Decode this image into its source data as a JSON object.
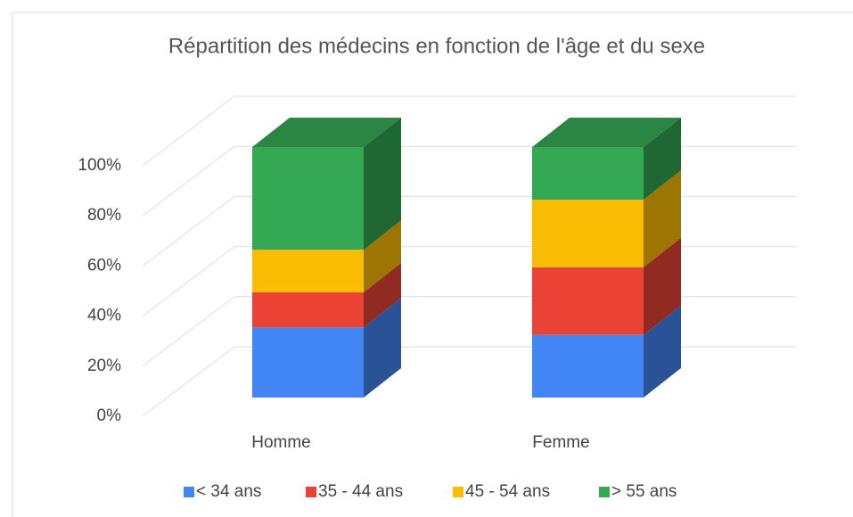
{
  "chart_data": {
    "type": "bar3d_stacked",
    "title": "Répartition des médecins en fonction de l'âge et du sexe",
    "categories": [
      "Homme",
      "Femme"
    ],
    "series": [
      {
        "name": "< 34 ans",
        "color": "#4285f4",
        "values": [
          28,
          25
        ]
      },
      {
        "name": "35 - 44 ans",
        "color": "#ea4335",
        "values": [
          14,
          27
        ]
      },
      {
        "name": "45 - 54 ans",
        "color": "#fbbc04",
        "values": [
          17,
          27
        ]
      },
      {
        "name": "> 55 ans",
        "color": "#34a853",
        "values": [
          41,
          21
        ]
      }
    ],
    "ylim": [
      0,
      100
    ],
    "yticks": [
      {
        "value": 0,
        "label": "0%"
      },
      {
        "value": 20,
        "label": "20%"
      },
      {
        "value": 40,
        "label": "40%"
      },
      {
        "value": 60,
        "label": "60%"
      },
      {
        "value": 80,
        "label": "80%"
      },
      {
        "value": 100,
        "label": "100%"
      }
    ],
    "grid": true,
    "legend": "bottom"
  }
}
